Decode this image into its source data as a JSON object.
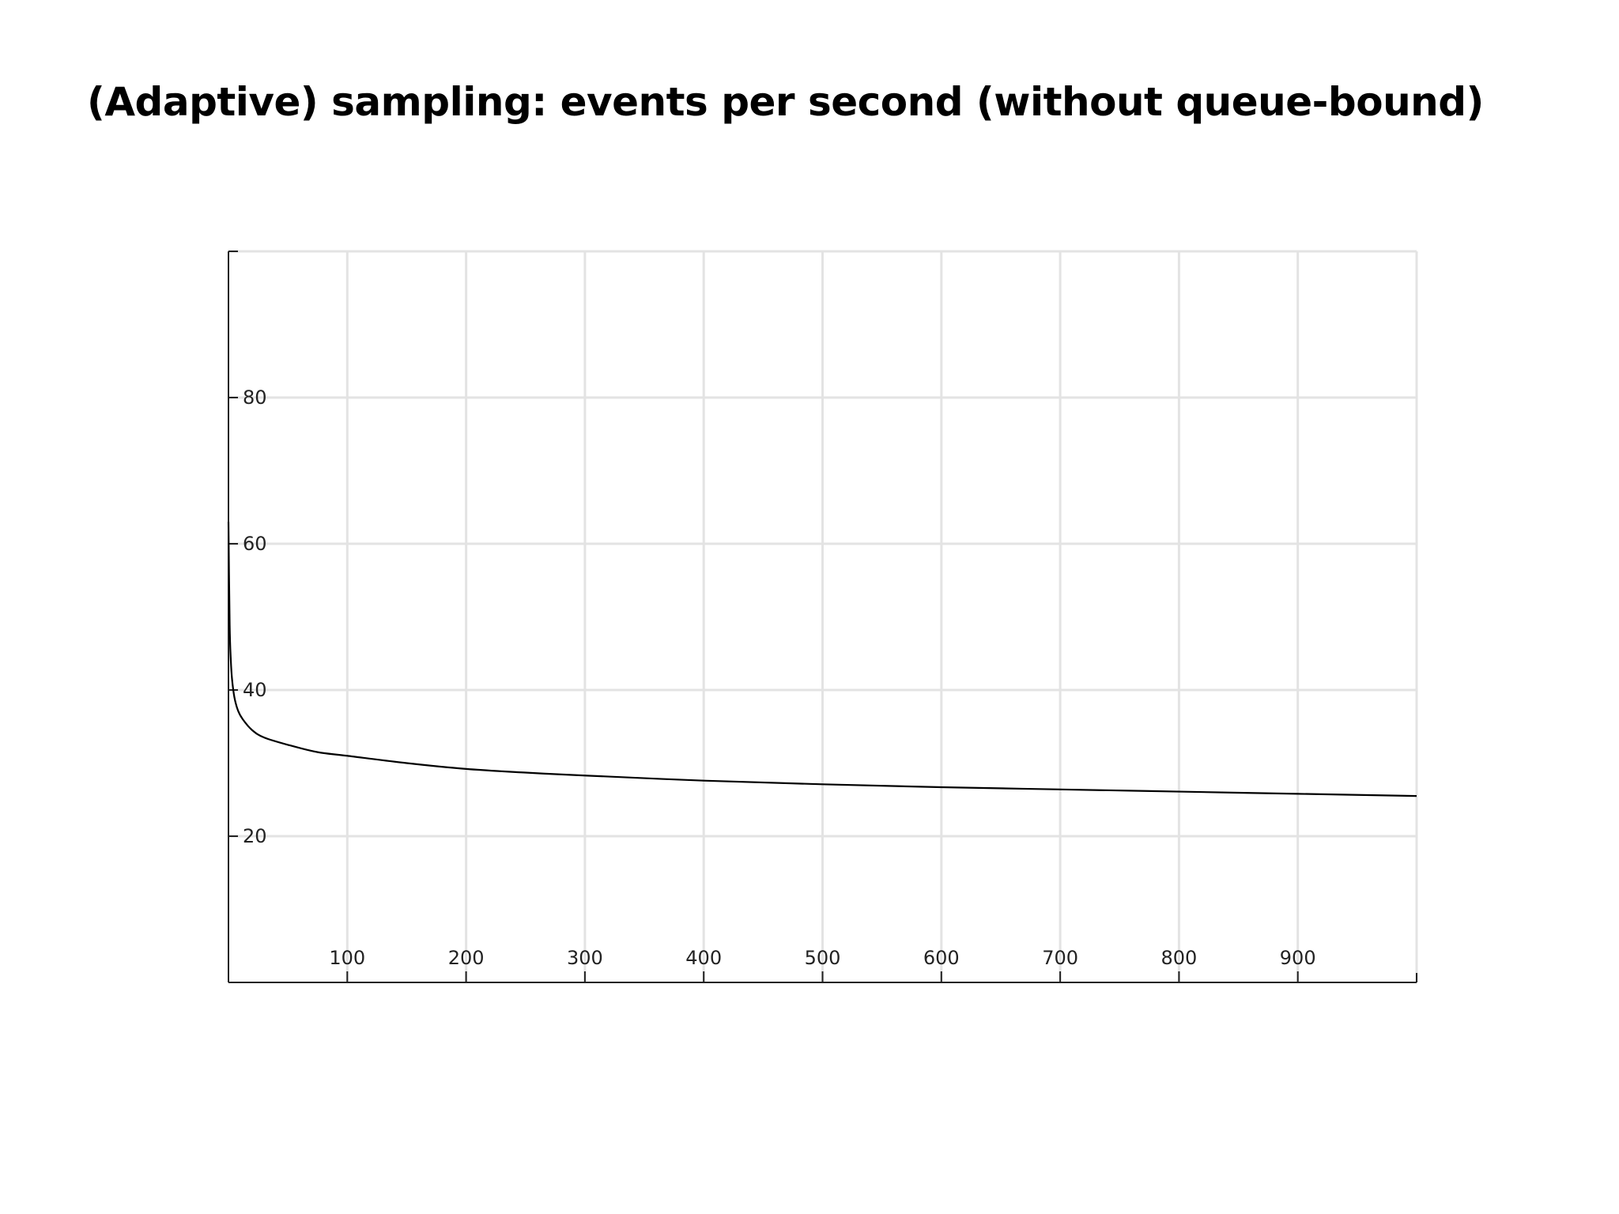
{
  "slide": {
    "title": "(Adaptive) sampling: events per second (without queue-bound)"
  },
  "chart_data": {
    "type": "line",
    "title": "",
    "xlabel": "",
    "ylabel": "",
    "xlim": [
      0,
      1000
    ],
    "ylim": [
      0,
      100
    ],
    "grid": true,
    "legend": "none",
    "x_ticks": [
      100,
      200,
      300,
      400,
      500,
      600,
      700,
      800,
      900
    ],
    "y_ticks": [
      20,
      40,
      60,
      80
    ],
    "series": [
      {
        "color": "#000000",
        "x": [
          0,
          1,
          2,
          3,
          5,
          8,
          12,
          20,
          30,
          50,
          75,
          100,
          150,
          200,
          250,
          300,
          400,
          500,
          600,
          700,
          800,
          900,
          1000
        ],
        "y": [
          63,
          49,
          44,
          41.5,
          39,
          37.2,
          36,
          34.5,
          33.5,
          32.5,
          31.5,
          31,
          30,
          29.2,
          28.7,
          28.3,
          27.6,
          27.1,
          26.7,
          26.4,
          26.1,
          25.8,
          25.5
        ]
      }
    ]
  }
}
